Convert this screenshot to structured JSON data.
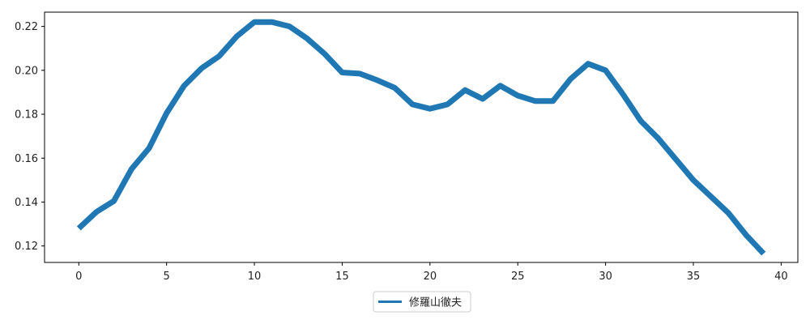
{
  "chart_data": {
    "type": "line",
    "title": "",
    "xlabel": "",
    "ylabel": "",
    "xlim": [
      -1.95,
      40.95
    ],
    "ylim": [
      0.1125,
      0.2265
    ],
    "x_ticks": [
      0,
      5,
      10,
      15,
      20,
      25,
      30,
      35,
      40
    ],
    "y_ticks": [
      0.12,
      0.14,
      0.16,
      0.18,
      0.2,
      0.22
    ],
    "x_tick_labels": [
      "0",
      "5",
      "10",
      "15",
      "20",
      "25",
      "30",
      "35",
      "40"
    ],
    "y_tick_labels": [
      "0.12",
      "0.14",
      "0.16",
      "0.18",
      "0.20",
      "0.22"
    ],
    "grid": false,
    "legend": {
      "placement": "bottom-center",
      "entries": [
        "修羅山徹夫"
      ]
    },
    "series": [
      {
        "name": "修羅山徹夫",
        "color": "#1f77b4",
        "x": [
          0,
          1,
          2,
          3,
          4,
          5,
          6,
          7,
          8,
          9,
          10,
          11,
          12,
          13,
          14,
          15,
          16,
          17,
          18,
          19,
          20,
          21,
          22,
          23,
          24,
          25,
          26,
          27,
          28,
          29,
          30,
          31,
          32,
          33,
          34,
          35,
          36,
          37,
          38,
          39
        ],
        "y": [
          0.128,
          0.1355,
          0.1405,
          0.155,
          0.1645,
          0.1805,
          0.193,
          0.201,
          0.2065,
          0.2155,
          0.222,
          0.222,
          0.22,
          0.2145,
          0.2075,
          0.199,
          0.1985,
          0.1955,
          0.192,
          0.1845,
          0.1825,
          0.1845,
          0.191,
          0.187,
          0.193,
          0.1885,
          0.186,
          0.186,
          0.196,
          0.203,
          0.2,
          0.189,
          0.177,
          0.169,
          0.1595,
          0.15,
          0.1425,
          0.135,
          0.125,
          0.1165
        ]
      }
    ]
  }
}
